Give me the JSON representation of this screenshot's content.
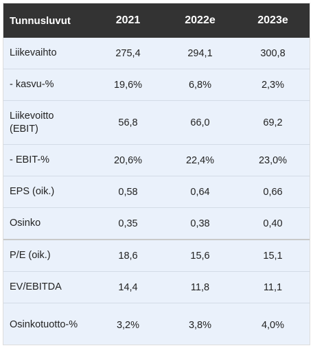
{
  "header": {
    "label": "Tunnusluvut",
    "years": [
      "2021",
      "2022e",
      "2023e"
    ]
  },
  "rows": [
    {
      "label": "Liikevaihto",
      "values": [
        "275,4",
        "294,1",
        "300,8"
      ]
    },
    {
      "label": "- kasvu-%",
      "values": [
        "19,6%",
        "6,8%",
        "2,3%"
      ]
    },
    {
      "label": "Liikevoitto (EBIT)",
      "values": [
        "56,8",
        "66,0",
        "69,2"
      ]
    },
    {
      "label": "- EBIT-%",
      "values": [
        "20,6%",
        "22,4%",
        "23,0%"
      ]
    },
    {
      "label": "EPS (oik.)",
      "values": [
        "0,58",
        "0,64",
        "0,66"
      ]
    },
    {
      "label": "Osinko",
      "values": [
        "0,35",
        "0,38",
        "0,40"
      ]
    },
    {
      "label": "P/E (oik.)",
      "values": [
        "18,6",
        "15,6",
        "15,1"
      ]
    },
    {
      "label": "EV/EBITDA",
      "values": [
        "14,4",
        "11,8",
        "11,1"
      ]
    },
    {
      "label": "Osinkotuotto-%",
      "values": [
        "3,2%",
        "3,8%",
        "4,0%"
      ]
    }
  ],
  "colors": {
    "header_bg": "#333333",
    "header_text": "#ffffff",
    "row_bg": "#eaf1fb",
    "row_border": "#d3dbe6"
  }
}
